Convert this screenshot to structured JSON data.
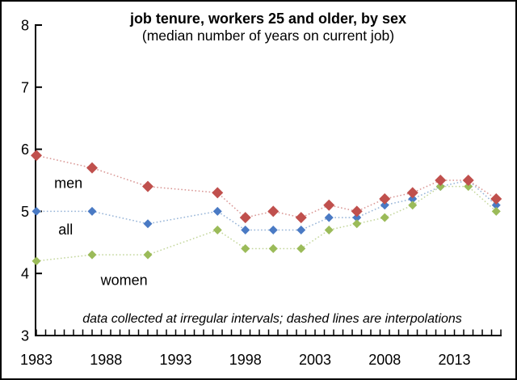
{
  "chart_data": {
    "type": "line",
    "title": "job tenure, workers 25 and older, by sex",
    "subtitle": "(median number of years on current job)",
    "annotation": "data collected at irregular intervals; dashed lines are interpolations",
    "marker": "diamond",
    "line_style": "dotted",
    "grid": false,
    "legend": "inline-labels",
    "x": [
      1983,
      1987,
      1991,
      1996,
      1998,
      2000,
      2002,
      2004,
      2006,
      2008,
      2010,
      2012,
      2014,
      2016
    ],
    "series": [
      {
        "name": "all",
        "marker_color": "#4a7ac4",
        "line_color": "#95b3d7",
        "marker_size": 11,
        "values": [
          5.0,
          5.0,
          4.8,
          5.0,
          4.7,
          4.7,
          4.7,
          4.9,
          4.9,
          5.1,
          5.2,
          5.4,
          5.5,
          5.1
        ],
        "label": {
          "text": "all",
          "x": 1985.1,
          "y": 4.71
        }
      },
      {
        "name": "women",
        "marker_color": "#9bbb59",
        "line_color": "#c3d69b",
        "marker_size": 11,
        "values": [
          4.2,
          4.3,
          4.3,
          4.7,
          4.4,
          4.4,
          4.4,
          4.7,
          4.8,
          4.9,
          5.1,
          5.4,
          5.4,
          5.0
        ],
        "label": {
          "text": "women",
          "x": 1989.3,
          "y": 3.9
        }
      },
      {
        "name": "men",
        "marker_color": "#c0504d",
        "line_color": "#d99694",
        "marker_size": 14,
        "values": [
          5.9,
          5.7,
          5.4,
          5.3,
          4.9,
          5.0,
          4.9,
          5.1,
          5.0,
          5.2,
          5.3,
          5.5,
          5.5,
          5.2
        ],
        "label": {
          "text": "men",
          "x": 1985.3,
          "y": 5.46
        }
      }
    ],
    "xlim": [
      1983,
      2016.33
    ],
    "ylim": [
      3,
      8
    ],
    "yticks": [
      3,
      4,
      5,
      6,
      7,
      8
    ],
    "xtick_labels": [
      1983,
      1988,
      1993,
      1998,
      2003,
      2008,
      2013
    ],
    "x_minor_tick_step_years": 0.6667
  }
}
